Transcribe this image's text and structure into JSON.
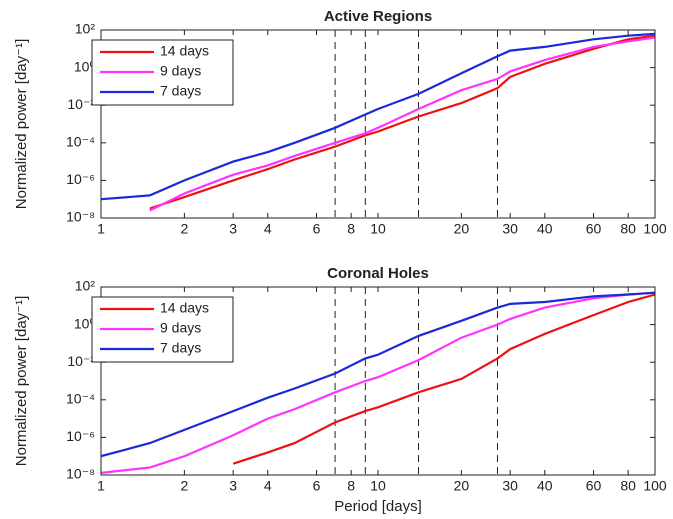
{
  "chart_data": [
    {
      "type": "line",
      "title": "Active Regions",
      "ylabel": "Normalized power [day⁻¹]",
      "xscale": "log",
      "yscale": "log",
      "grid": false,
      "legend": "upper left",
      "xlim": [
        1,
        100
      ],
      "xticks": [
        1,
        2,
        3,
        4,
        6,
        8,
        10,
        20,
        30,
        40,
        60,
        80,
        100
      ],
      "ylim": [
        1e-08,
        100
      ],
      "yticks": [
        {
          "value": 1e-08,
          "label": "10⁻⁸"
        },
        {
          "value": 1e-06,
          "label": "10⁻⁶"
        },
        {
          "value": 0.0001,
          "label": "10⁻⁴"
        },
        {
          "value": 0.01,
          "label": "10⁻²"
        },
        {
          "value": 1,
          "label": "10⁰"
        },
        {
          "value": 100,
          "label": "10²"
        }
      ],
      "vlines": [
        7,
        9,
        14,
        27
      ],
      "x": [
        1,
        1.5,
        2,
        3,
        4,
        5,
        7,
        9,
        10,
        14,
        20,
        27,
        30,
        40,
        60,
        80,
        100
      ],
      "series": [
        {
          "name": "14 days",
          "color": "#ee1111",
          "values": [
            null,
            3.2e-08,
            1.3e-07,
            1e-06,
            4e-06,
            1.3e-05,
            6.3e-05,
            0.00025,
            0.0004,
            0.0025,
            0.013,
            0.08,
            0.32,
            1.6,
            10,
            32,
            50
          ]
        },
        {
          "name": "9 days",
          "color": "#ff33ff",
          "values": [
            null,
            2.5e-08,
            2e-07,
            2e-06,
            6.3e-06,
            2e-05,
            0.0001,
            0.00032,
            0.00063,
            0.0063,
            0.063,
            0.25,
            0.63,
            2.5,
            12.6,
            25,
            40
          ]
        },
        {
          "name": "7 days",
          "color": "#1a2ad8",
          "values": [
            1e-07,
            1.6e-07,
            1e-06,
            1e-05,
            3.2e-05,
            0.0001,
            0.00063,
            0.0032,
            0.0063,
            0.04,
            0.5,
            4,
            8,
            12.6,
            32,
            50,
            63
          ]
        }
      ]
    },
    {
      "type": "line",
      "title": "Coronal Holes",
      "xlabel": "Period [days]",
      "ylabel": "Normalized power [day⁻¹]",
      "xscale": "log",
      "yscale": "log",
      "grid": false,
      "legend": "upper left",
      "xlim": [
        1,
        100
      ],
      "xticks": [
        1,
        2,
        3,
        4,
        6,
        8,
        10,
        20,
        30,
        40,
        60,
        80,
        100
      ],
      "ylim": [
        1e-08,
        100
      ],
      "yticks": [
        {
          "value": 1e-08,
          "label": "10⁻⁸"
        },
        {
          "value": 1e-06,
          "label": "10⁻⁶"
        },
        {
          "value": 0.0001,
          "label": "10⁻⁴"
        },
        {
          "value": 0.01,
          "label": "10⁻²"
        },
        {
          "value": 1,
          "label": "10⁰"
        },
        {
          "value": 100,
          "label": "10²"
        }
      ],
      "vlines": [
        7,
        9,
        14,
        27
      ],
      "x": [
        1,
        1.5,
        2,
        3,
        4,
        5,
        7,
        9,
        10,
        14,
        20,
        27,
        30,
        40,
        60,
        80,
        100
      ],
      "series": [
        {
          "name": "14 days",
          "color": "#ee1111",
          "values": [
            null,
            null,
            null,
            4e-08,
            1.6e-07,
            5e-07,
            6.3e-06,
            2.5e-05,
            4e-05,
            0.00025,
            0.0013,
            0.016,
            0.05,
            0.32,
            3.2,
            16,
            40
          ]
        },
        {
          "name": "9 days",
          "color": "#ff33ff",
          "values": [
            1.3e-08,
            2.5e-08,
            1e-07,
            1.3e-06,
            1e-05,
            3.2e-05,
            0.00025,
            0.001,
            0.0016,
            0.013,
            0.2,
            1,
            2,
            8,
            25,
            40,
            50
          ]
        },
        {
          "name": "7 days",
          "color": "#1a2ad8",
          "values": [
            1e-07,
            5e-07,
            2.5e-06,
            2.5e-05,
            0.00013,
            0.0004,
            0.0025,
            0.016,
            0.025,
            0.25,
            1.6,
            8,
            12.6,
            16,
            32,
            40,
            50
          ]
        }
      ]
    }
  ]
}
